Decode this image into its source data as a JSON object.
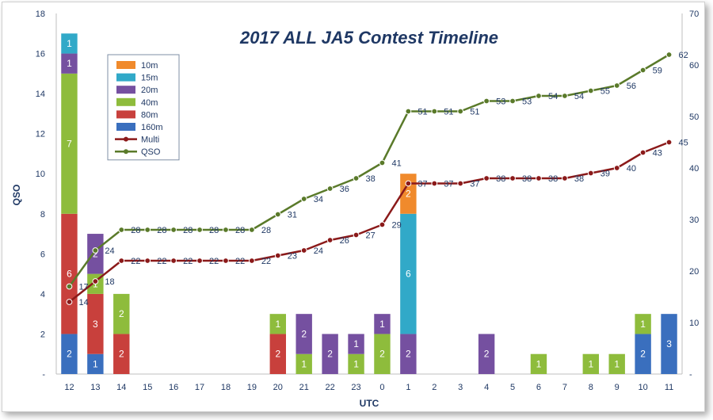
{
  "chart_data": {
    "type": "bar",
    "title": "2017 ALL JA5 Contest Timeline",
    "xlabel": "UTC",
    "ylabel": "QSO",
    "ylim": [
      0,
      18
    ],
    "y2lim": [
      0,
      70
    ],
    "y_ticks": [
      0,
      2,
      4,
      6,
      8,
      10,
      12,
      14,
      16,
      18
    ],
    "y_tick_labels": [
      "-",
      "2",
      "4",
      "6",
      "8",
      "10",
      "12",
      "14",
      "16",
      "18"
    ],
    "y2_ticks": [
      0,
      10,
      20,
      30,
      40,
      50,
      60,
      70
    ],
    "y2_tick_labels": [
      "-",
      "10",
      "20",
      "30",
      "40",
      "50",
      "60",
      "70"
    ],
    "grid": false,
    "legend_position": "top-left",
    "categories": [
      "12",
      "13",
      "14",
      "15",
      "16",
      "17",
      "18",
      "19",
      "20",
      "21",
      "22",
      "23",
      "0",
      "1",
      "2",
      "3",
      "4",
      "5",
      "6",
      "7",
      "8",
      "9",
      "10",
      "11"
    ],
    "series": [
      {
        "name": "160m",
        "kind": "bar",
        "color": "#3a6fbe",
        "values": [
          2,
          1,
          0,
          0,
          0,
          0,
          0,
          0,
          0,
          0,
          0,
          0,
          0,
          0,
          0,
          0,
          0,
          0,
          0,
          0,
          0,
          0,
          2,
          3
        ]
      },
      {
        "name": "80m",
        "kind": "bar",
        "color": "#c8403c",
        "values": [
          6,
          3,
          2,
          0,
          0,
          0,
          0,
          0,
          2,
          0,
          0,
          0,
          0,
          0,
          0,
          0,
          0,
          0,
          0,
          0,
          0,
          0,
          0,
          0
        ]
      },
      {
        "name": "40m",
        "kind": "bar",
        "color": "#8ebc3c",
        "values": [
          7,
          1,
          2,
          0,
          0,
          0,
          0,
          0,
          1,
          1,
          0,
          1,
          2,
          0,
          0,
          0,
          0,
          0,
          1,
          0,
          1,
          1,
          1,
          0
        ]
      },
      {
        "name": "20m",
        "kind": "bar",
        "color": "#7550a0",
        "values": [
          1,
          2,
          0,
          0,
          0,
          0,
          0,
          0,
          0,
          2,
          2,
          1,
          1,
          2,
          0,
          0,
          2,
          0,
          0,
          0,
          0,
          0,
          0,
          0
        ]
      },
      {
        "name": "15m",
        "kind": "bar",
        "color": "#31a9c8",
        "values": [
          1,
          0,
          0,
          0,
          0,
          0,
          0,
          0,
          0,
          0,
          0,
          0,
          0,
          6,
          0,
          0,
          0,
          0,
          0,
          0,
          0,
          0,
          0,
          0
        ]
      },
      {
        "name": "10m",
        "kind": "bar",
        "color": "#f08a2c",
        "values": [
          0,
          0,
          0,
          0,
          0,
          0,
          0,
          0,
          0,
          0,
          0,
          0,
          0,
          2,
          0,
          0,
          0,
          0,
          0,
          0,
          0,
          0,
          0,
          0
        ]
      },
      {
        "name": "Multi",
        "kind": "line",
        "axis": "right",
        "color": "#8b1a1a",
        "values": [
          14,
          18,
          22,
          22,
          22,
          22,
          22,
          22,
          23,
          24,
          26,
          27,
          29,
          37,
          37,
          37,
          38,
          38,
          38,
          38,
          39,
          40,
          43,
          45
        ]
      },
      {
        "name": "QSO",
        "kind": "line",
        "axis": "right",
        "color": "#5a7a2a",
        "values": [
          17,
          24,
          28,
          28,
          28,
          28,
          28,
          28,
          31,
          34,
          36,
          38,
          41,
          51,
          51,
          51,
          53,
          53,
          54,
          54,
          55,
          56,
          59,
          62
        ]
      }
    ],
    "legend_order": [
      "10m",
      "15m",
      "20m",
      "40m",
      "80m",
      "160m",
      "Multi",
      "QSO"
    ]
  }
}
